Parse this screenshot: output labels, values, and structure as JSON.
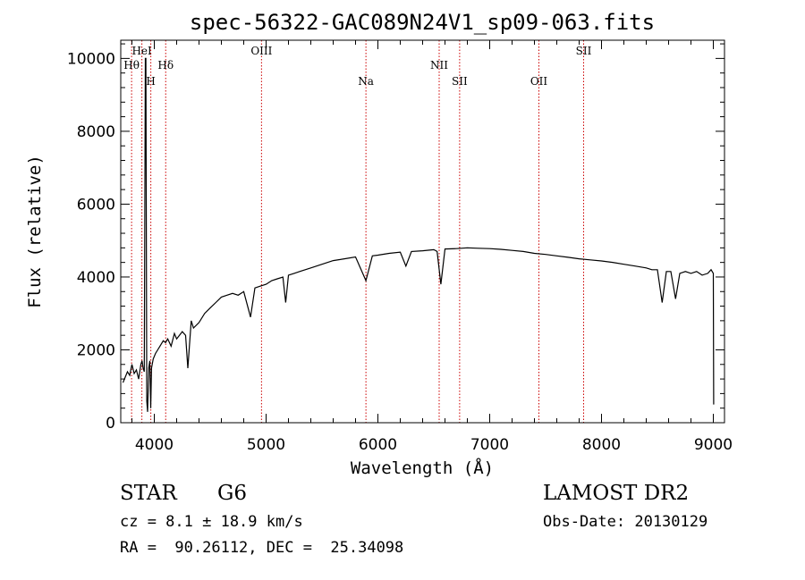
{
  "chart_data": {
    "type": "line",
    "title": "spec-56322-GAC089N24V1_sp09-063.fits",
    "xlabel": "Wavelength (Å)",
    "ylabel": "Flux (relative)",
    "xlim": [
      3700,
      9100
    ],
    "ylim": [
      0,
      10500
    ],
    "x_ticks": [
      4000,
      5000,
      6000,
      7000,
      8000,
      9000
    ],
    "y_ticks": [
      0,
      2000,
      4000,
      6000,
      8000,
      10000
    ],
    "x_tick_labels": [
      "4000",
      "5000",
      "6000",
      "7000",
      "8000",
      "9000"
    ],
    "y_tick_labels": [
      "0",
      "2000",
      "4000",
      "6000",
      "8000",
      "10000"
    ],
    "grid": false,
    "line_markers": [
      {
        "label": "Hθ",
        "x": 3797,
        "row": 1
      },
      {
        "label": "HeI",
        "x": 3889,
        "row": 0
      },
      {
        "label": "H",
        "x": 3969,
        "row": 2
      },
      {
        "label": "Hδ",
        "x": 4102,
        "row": 1
      },
      {
        "label": "OIII",
        "x": 4959,
        "row": 0
      },
      {
        "label": "Na",
        "x": 5893,
        "row": 2
      },
      {
        "label": "NII",
        "x": 6548,
        "row": 1
      },
      {
        "label": "SII",
        "x": 6731,
        "row": 2
      },
      {
        "label": "OII",
        "x": 7440,
        "row": 2
      },
      {
        "label": "SII",
        "x": 7840,
        "row": 0
      }
    ],
    "series": [
      {
        "x": [
          3720,
          3740,
          3760,
          3780,
          3800,
          3820,
          3840,
          3860,
          3880,
          3890,
          3900,
          3910,
          3920,
          3925,
          3933,
          3940,
          3950,
          3960,
          3968,
          3975,
          3990,
          4010,
          4030,
          4050,
          4080,
          4101,
          4120,
          4150,
          4180,
          4200,
          4250,
          4280,
          4300,
          4330,
          4350,
          4400,
          4450,
          4500,
          4550,
          4600,
          4650,
          4700,
          4750,
          4800,
          4861,
          4900,
          4950,
          5000,
          5050,
          5100,
          5150,
          5175,
          5200,
          5250,
          5300,
          5400,
          5500,
          5600,
          5700,
          5800,
          5893,
          5950,
          6000,
          6100,
          6200,
          6250,
          6300,
          6400,
          6500,
          6530,
          6563,
          6600,
          6700,
          6800,
          6900,
          7000,
          7100,
          7200,
          7300,
          7400,
          7500,
          7600,
          7700,
          7800,
          7900,
          8000,
          8100,
          8200,
          8300,
          8400,
          8450,
          8500,
          8542,
          8580,
          8620,
          8662,
          8700,
          8750,
          8800,
          8850,
          8900,
          8950,
          8980,
          9000,
          9003
        ],
        "y": [
          1100,
          1250,
          1400,
          1300,
          1600,
          1350,
          1450,
          1200,
          1600,
          1700,
          1500,
          1400,
          10000,
          10000,
          600,
          300,
          1500,
          1700,
          400,
          1500,
          1750,
          1900,
          2000,
          2100,
          2250,
          2200,
          2300,
          2100,
          2450,
          2300,
          2500,
          2400,
          1500,
          2800,
          2600,
          2750,
          3000,
          3150,
          3300,
          3450,
          3500,
          3550,
          3500,
          3600,
          2900,
          3700,
          3750,
          3800,
          3900,
          3950,
          4000,
          3300,
          4050,
          4100,
          4150,
          4250,
          4350,
          4450,
          4500,
          4550,
          3900,
          4580,
          4600,
          4650,
          4680,
          4300,
          4700,
          4720,
          4750,
          4700,
          3800,
          4770,
          4780,
          4800,
          4790,
          4780,
          4760,
          4730,
          4700,
          4650,
          4620,
          4580,
          4540,
          4500,
          4470,
          4440,
          4400,
          4350,
          4300,
          4250,
          4200,
          4200,
          3300,
          4150,
          4150,
          3400,
          4100,
          4150,
          4100,
          4150,
          4050,
          4100,
          4200,
          4100,
          500
        ]
      }
    ]
  },
  "object": {
    "class": "STAR",
    "subclass": "G6",
    "cz": "cz = 8.1 ± 18.9 km/s",
    "coords": "RA =  90.26112, DEC =  25.34098",
    "survey": "LAMOST DR2",
    "obs_date": "Obs-Date: 20130129"
  },
  "colors": {
    "spectrum": "#000000",
    "marker_line": "#cc0000",
    "axes": "#000000",
    "background": "#ffffff"
  }
}
